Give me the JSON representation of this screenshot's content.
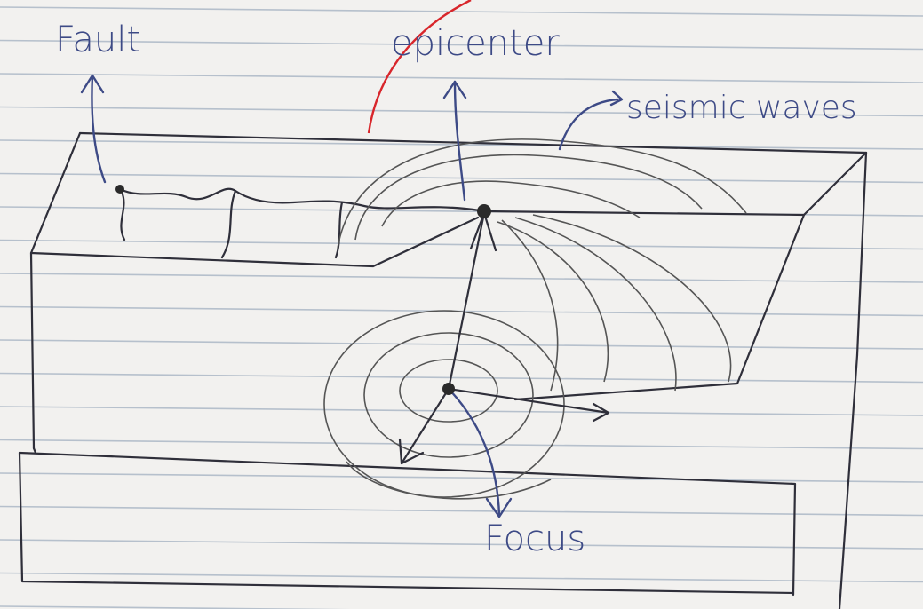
{
  "labels": {
    "fault": "Fault",
    "epicenter": "epicenter",
    "seismic_waves": "seismic waves",
    "focus": "Focus"
  }
}
